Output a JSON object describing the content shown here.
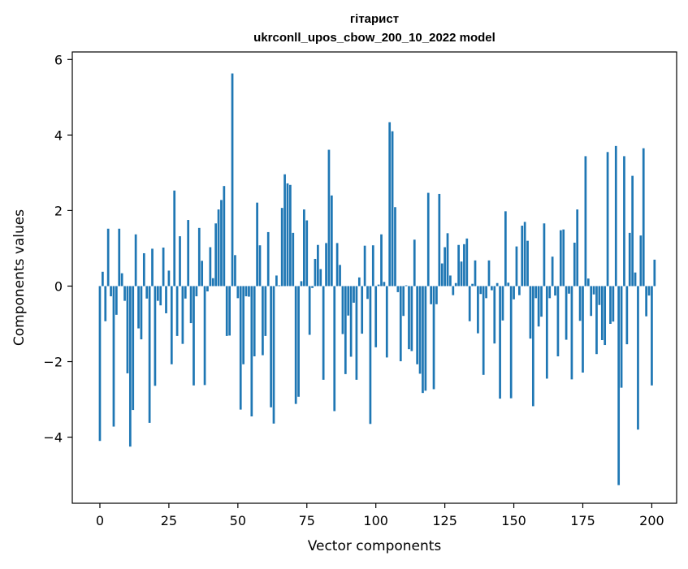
{
  "chart_data": {
    "type": "bar",
    "title_line1": "гітарист",
    "title_line2": "ukrconll_upos_cbow_200_10_2022 model",
    "xlabel": "Vector components",
    "ylabel": "Components values",
    "xlim": [
      -10,
      209
    ],
    "ylim": [
      -5.75,
      6.2
    ],
    "x_ticks": [
      0,
      25,
      50,
      75,
      100,
      125,
      150,
      175,
      200
    ],
    "y_ticks": [
      6,
      4,
      2,
      0,
      -2,
      -4
    ],
    "y_tick_labels": [
      "6",
      "4",
      "2",
      "0",
      "−2",
      "−4"
    ],
    "bar_color": "#1f77b4",
    "grid": false,
    "values": [
      -4.1,
      0.38,
      -0.93,
      1.52,
      -0.27,
      -3.72,
      -0.76,
      1.52,
      0.34,
      -0.39,
      -2.31,
      -4.25,
      -3.28,
      1.37,
      -1.12,
      -1.41,
      0.87,
      -0.33,
      -3.62,
      0.99,
      -2.64,
      -0.39,
      -0.51,
      1.02,
      -0.72,
      0.41,
      -2.07,
      2.53,
      -1.32,
      1.32,
      -1.53,
      -0.33,
      1.75,
      -0.98,
      -2.63,
      -0.27,
      1.54,
      0.67,
      -2.62,
      -0.14,
      1.03,
      0.21,
      1.66,
      2.03,
      2.28,
      2.65,
      -1.32,
      -1.31,
      5.63,
      0.82,
      -0.32,
      -3.27,
      -2.07,
      -0.27,
      -0.28,
      -3.45,
      -1.86,
      2.21,
      1.08,
      -1.83,
      -1.32,
      1.43,
      -3.21,
      -3.64,
      0.28,
      0.02,
      2.07,
      2.96,
      2.72,
      2.68,
      1.41,
      -3.12,
      -2.93,
      0.13,
      2.03,
      1.74,
      -1.29,
      -0.05,
      0.72,
      1.09,
      0.45,
      -2.48,
      1.14,
      3.61,
      2.4,
      -3.31,
      1.14,
      0.56,
      -1.27,
      -2.33,
      -0.78,
      -1.87,
      -0.44,
      -2.48,
      0.23,
      -1.26,
      1.07,
      -0.34,
      -3.65,
      1.08,
      -1.62,
      0.04,
      1.37,
      0.11,
      -1.89,
      4.34,
      4.1,
      2.09,
      -0.16,
      -1.99,
      -0.79,
      0.02,
      -1.67,
      -1.72,
      1.23,
      -2.07,
      -2.32,
      -2.83,
      -2.77,
      2.47,
      -0.48,
      -2.73,
      -0.48,
      2.44,
      0.6,
      1.03,
      1.4,
      0.28,
      -0.24,
      0.08,
      1.09,
      0.65,
      1.11,
      1.26,
      -0.93,
      0.06,
      0.68,
      -1.25,
      -0.21,
      -2.35,
      -0.32,
      0.68,
      -0.11,
      -1.52,
      0.08,
      -2.98,
      -0.91,
      1.98,
      0.09,
      -2.97,
      -0.35,
      1.05,
      -0.24,
      1.6,
      1.7,
      1.2,
      -1.39,
      -3.18,
      -0.32,
      -1.07,
      -0.81,
      1.66,
      -2.45,
      -0.32,
      0.78,
      -0.25,
      -1.86,
      1.48,
      1.5,
      -1.42,
      -0.2,
      -2.47,
      1.15,
      2.03,
      -0.92,
      -2.29,
      3.44,
      0.2,
      -0.79,
      -0.22,
      -1.8,
      -0.5,
      -1.43,
      -1.56,
      3.55,
      -1.0,
      -0.94,
      3.71,
      -5.27,
      -2.69,
      3.44,
      -1.54,
      1.41,
      2.92,
      0.36,
      -3.8,
      1.34,
      3.65,
      -0.8,
      -0.25,
      -2.63,
      0.7
    ]
  }
}
